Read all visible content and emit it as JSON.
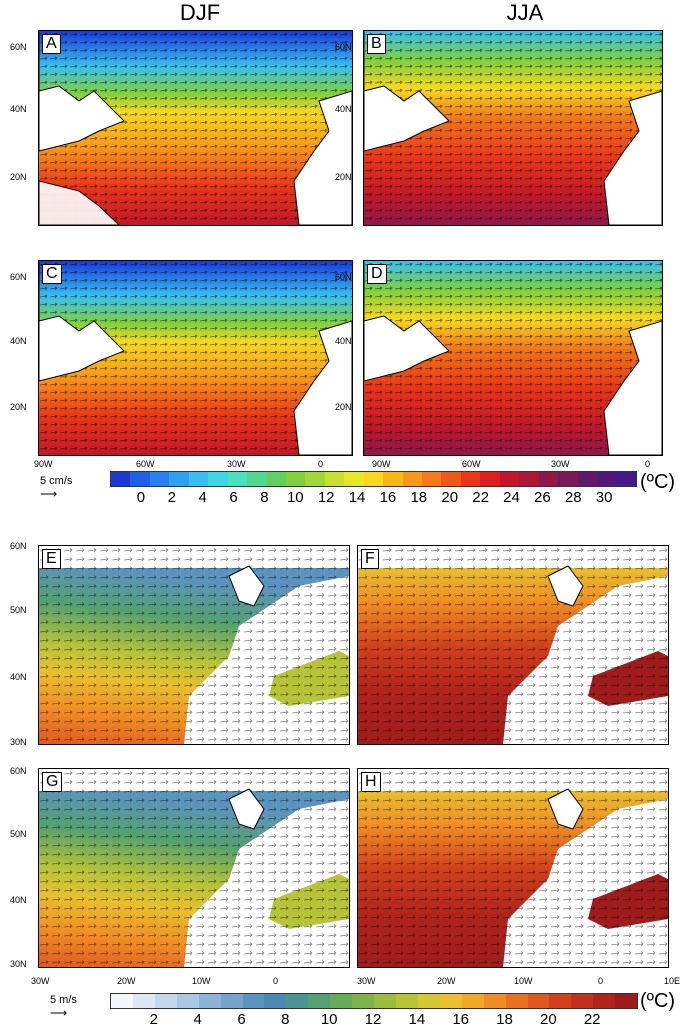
{
  "column_titles": [
    "DJF",
    "JJA"
  ],
  "top_panels": [
    "A",
    "B",
    "C",
    "D"
  ],
  "bottom_panels": [
    "E",
    "F",
    "G",
    "H"
  ],
  "top_lat_labels": [
    "60N",
    "40N",
    "20N"
  ],
  "top_lon_labels": [
    "90W",
    "60W",
    "30W",
    "0"
  ],
  "top_colorbar": {
    "ref_label": "5 cm/s",
    "unit": "(ºC)",
    "ticks": [
      "0",
      "2",
      "4",
      "6",
      "8",
      "10",
      "12",
      "14",
      "16",
      "18",
      "20",
      "22",
      "24",
      "26",
      "28",
      "30"
    ],
    "colors": [
      "#1a3ad8",
      "#2060e8",
      "#2a80f0",
      "#30a0f0",
      "#38c0f0",
      "#40d8e0",
      "#48e0c0",
      "#50d890",
      "#60d060",
      "#80d040",
      "#a0d838",
      "#c8e030",
      "#e8e828",
      "#f8d820",
      "#f8b818",
      "#f89818",
      "#f87818",
      "#f05818",
      "#e83818",
      "#d82020",
      "#c01828",
      "#a81838",
      "#901848",
      "#781858",
      "#601868",
      "#501878",
      "#481888"
    ]
  },
  "bottom_lat_labels": [
    "60N",
    "50N",
    "40N",
    "30N"
  ],
  "bottom_lon_labels": [
    "30W",
    "20W",
    "10W",
    "0"
  ],
  "bottom_lon_labels_right": [
    "30W",
    "20W",
    "10W",
    "0",
    "10E"
  ],
  "bottom_colorbar": {
    "ref_label": "5 m/s",
    "unit": "(ºC)",
    "ticks": [
      "2",
      "4",
      "6",
      "8",
      "10",
      "12",
      "14",
      "16",
      "18",
      "20",
      "22"
    ],
    "colors": [
      "#f4f8fc",
      "#dce8f4",
      "#c4d8ec",
      "#a8c8e4",
      "#8cb4d8",
      "#74a4cc",
      "#5c94c0",
      "#4c88b0",
      "#4c9490",
      "#54a070",
      "#64ac58",
      "#80b448",
      "#9cbc40",
      "#b8c438",
      "#d4c834",
      "#e8c030",
      "#f0a828",
      "#f08c24",
      "#e87020",
      "#e05820",
      "#d0401c",
      "#c0301c",
      "#b0241c",
      "#a01c1c"
    ]
  }
}
